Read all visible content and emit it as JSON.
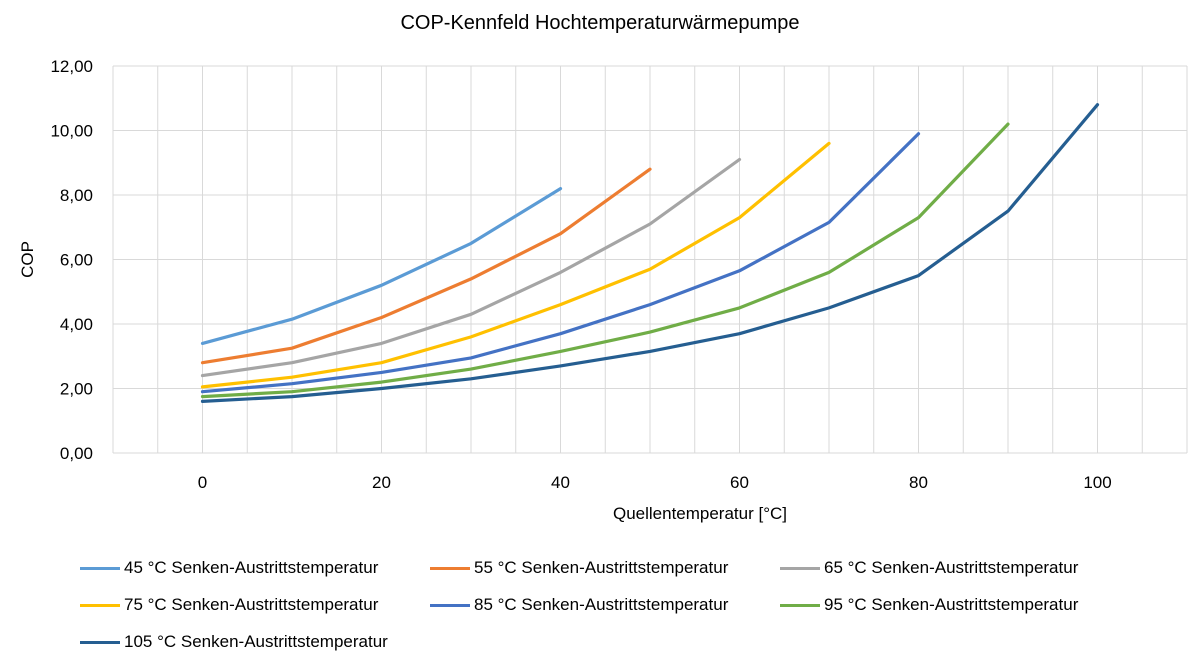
{
  "chart_data": {
    "type": "line",
    "title": "COP-Kennfeld Hochtemperaturwärmepumpe",
    "xlabel": "Quellentemperatur [°C]",
    "ylabel": "COP",
    "xlim": [
      -10,
      110
    ],
    "ylim": [
      0,
      12
    ],
    "xticks": [
      0,
      20,
      40,
      60,
      80,
      100
    ],
    "yticks": [
      0,
      2,
      4,
      6,
      8,
      10,
      12
    ],
    "ytick_labels": [
      "0,00",
      "2,00",
      "4,00",
      "6,00",
      "8,00",
      "10,00",
      "12,00"
    ],
    "grid": true,
    "legend_position": "bottom",
    "series": [
      {
        "name": "45 °C Senken-Austrittstemperatur",
        "color": "#5B9BD5",
        "x": [
          0,
          10,
          20,
          30,
          40
        ],
        "y": [
          3.4,
          4.15,
          5.2,
          6.5,
          8.2
        ]
      },
      {
        "name": "55 °C Senken-Austrittstemperatur",
        "color": "#ED7D31",
        "x": [
          0,
          10,
          20,
          30,
          40,
          50
        ],
        "y": [
          2.8,
          3.25,
          4.2,
          5.4,
          6.8,
          8.8
        ]
      },
      {
        "name": "65 °C Senken-Austrittstemperatur",
        "color": "#A5A5A5",
        "x": [
          0,
          10,
          20,
          30,
          40,
          50,
          60
        ],
        "y": [
          2.4,
          2.8,
          3.4,
          4.3,
          5.6,
          7.1,
          9.1
        ]
      },
      {
        "name": "75 °C Senken-Austrittstemperatur",
        "color": "#FFC000",
        "x": [
          0,
          10,
          20,
          30,
          40,
          50,
          60,
          70
        ],
        "y": [
          2.05,
          2.35,
          2.8,
          3.6,
          4.6,
          5.7,
          7.3,
          9.6
        ]
      },
      {
        "name": "85 °C Senken-Austrittstemperatur",
        "color": "#4472C4",
        "x": [
          0,
          10,
          20,
          30,
          40,
          50,
          60,
          70,
          80
        ],
        "y": [
          1.9,
          2.15,
          2.5,
          2.95,
          3.7,
          4.6,
          5.65,
          7.15,
          9.9
        ]
      },
      {
        "name": "95 °C Senken-Austrittstemperatur",
        "color": "#70AD47",
        "x": [
          0,
          10,
          20,
          30,
          40,
          50,
          60,
          70,
          80,
          90
        ],
        "y": [
          1.75,
          1.9,
          2.2,
          2.6,
          3.15,
          3.75,
          4.5,
          5.6,
          7.3,
          10.2
        ]
      },
      {
        "name": "105 °C Senken-Austrittstemperatur",
        "color": "#255E91",
        "x": [
          0,
          10,
          20,
          30,
          40,
          50,
          60,
          70,
          80,
          90,
          100
        ],
        "y": [
          1.6,
          1.75,
          2.0,
          2.3,
          2.7,
          3.15,
          3.7,
          4.5,
          5.5,
          7.5,
          10.8
        ]
      }
    ]
  }
}
